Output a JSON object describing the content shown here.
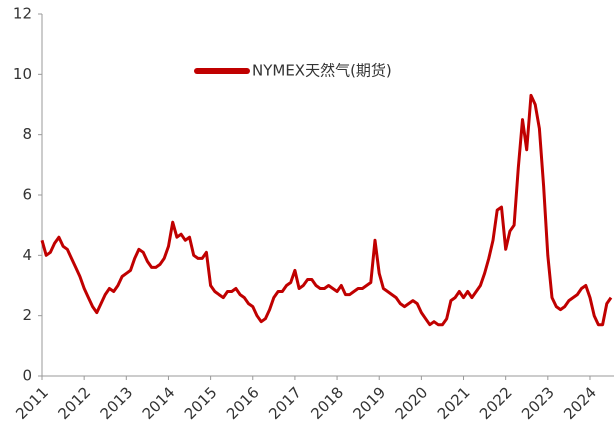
{
  "chart_data": {
    "type": "line",
    "x": [
      2011.0,
      2011.1,
      2011.2,
      2011.3,
      2011.4,
      2011.5,
      2011.6,
      2011.7,
      2011.8,
      2011.9,
      2012.0,
      2012.1,
      2012.2,
      2012.3,
      2012.4,
      2012.5,
      2012.6,
      2012.7,
      2012.8,
      2012.9,
      2013.0,
      2013.1,
      2013.2,
      2013.3,
      2013.4,
      2013.5,
      2013.6,
      2013.7,
      2013.8,
      2013.9,
      2014.0,
      2014.1,
      2014.2,
      2014.3,
      2014.4,
      2014.5,
      2014.6,
      2014.7,
      2014.8,
      2014.9,
      2015.0,
      2015.1,
      2015.2,
      2015.3,
      2015.4,
      2015.5,
      2015.6,
      2015.7,
      2015.8,
      2015.9,
      2016.0,
      2016.1,
      2016.2,
      2016.3,
      2016.4,
      2016.5,
      2016.6,
      2016.7,
      2016.8,
      2016.9,
      2017.0,
      2017.1,
      2017.2,
      2017.3,
      2017.4,
      2017.5,
      2017.6,
      2017.7,
      2017.8,
      2017.9,
      2018.0,
      2018.1,
      2018.2,
      2018.3,
      2018.4,
      2018.5,
      2018.6,
      2018.7,
      2018.8,
      2018.9,
      2019.0,
      2019.1,
      2019.2,
      2019.3,
      2019.4,
      2019.5,
      2019.6,
      2019.7,
      2019.8,
      2019.9,
      2020.0,
      2020.1,
      2020.2,
      2020.3,
      2020.4,
      2020.5,
      2020.6,
      2020.7,
      2020.8,
      2020.9,
      2021.0,
      2021.1,
      2021.2,
      2021.3,
      2021.4,
      2021.5,
      2021.6,
      2021.7,
      2021.8,
      2021.9,
      2022.0,
      2022.1,
      2022.2,
      2022.3,
      2022.4,
      2022.5,
      2022.6,
      2022.7,
      2022.8,
      2022.9,
      2023.0,
      2023.1,
      2023.2,
      2023.3,
      2023.4,
      2023.5,
      2023.6,
      2023.7,
      2023.8,
      2023.9,
      2024.0,
      2024.1,
      2024.2,
      2024.3,
      2024.4,
      2024.5
    ],
    "series": [
      {
        "name": "NYMEX天然气(期货)",
        "color": "#c00000",
        "values": [
          4.5,
          4.0,
          4.1,
          4.4,
          4.6,
          4.3,
          4.2,
          3.9,
          3.6,
          3.3,
          2.9,
          2.6,
          2.3,
          2.1,
          2.4,
          2.7,
          2.9,
          2.8,
          3.0,
          3.3,
          3.4,
          3.5,
          3.9,
          4.2,
          4.1,
          3.8,
          3.6,
          3.6,
          3.7,
          3.9,
          4.3,
          5.1,
          4.6,
          4.7,
          4.5,
          4.6,
          4.0,
          3.9,
          3.9,
          4.1,
          3.0,
          2.8,
          2.7,
          2.6,
          2.8,
          2.8,
          2.9,
          2.7,
          2.6,
          2.4,
          2.3,
          2.0,
          1.8,
          1.9,
          2.2,
          2.6,
          2.8,
          2.8,
          3.0,
          3.1,
          3.5,
          2.9,
          3.0,
          3.2,
          3.2,
          3.0,
          2.9,
          2.9,
          3.0,
          2.9,
          2.8,
          3.0,
          2.7,
          2.7,
          2.8,
          2.9,
          2.9,
          3.0,
          3.1,
          4.5,
          3.4,
          2.9,
          2.8,
          2.7,
          2.6,
          2.4,
          2.3,
          2.4,
          2.5,
          2.4,
          2.1,
          1.9,
          1.7,
          1.8,
          1.7,
          1.7,
          1.9,
          2.5,
          2.6,
          2.8,
          2.6,
          2.8,
          2.6,
          2.8,
          3.0,
          3.4,
          3.9,
          4.5,
          5.5,
          5.6,
          4.2,
          4.8,
          5.0,
          6.9,
          8.5,
          7.5,
          9.3,
          9.0,
          8.2,
          6.3,
          4.0,
          2.6,
          2.3,
          2.2,
          2.3,
          2.5,
          2.6,
          2.7,
          2.9,
          3.0,
          2.6,
          2.0,
          1.7,
          1.7,
          2.4,
          2.6
        ]
      }
    ],
    "xlim": [
      2011,
      2024.57
    ],
    "xticks": [
      2011,
      2012,
      2013,
      2014,
      2015,
      2016,
      2017,
      2018,
      2019,
      2020,
      2021,
      2022,
      2023,
      2024
    ],
    "ylim": [
      0,
      12
    ],
    "yticks": [
      0,
      2,
      4,
      6,
      8,
      10,
      12
    ],
    "grid": false
  }
}
